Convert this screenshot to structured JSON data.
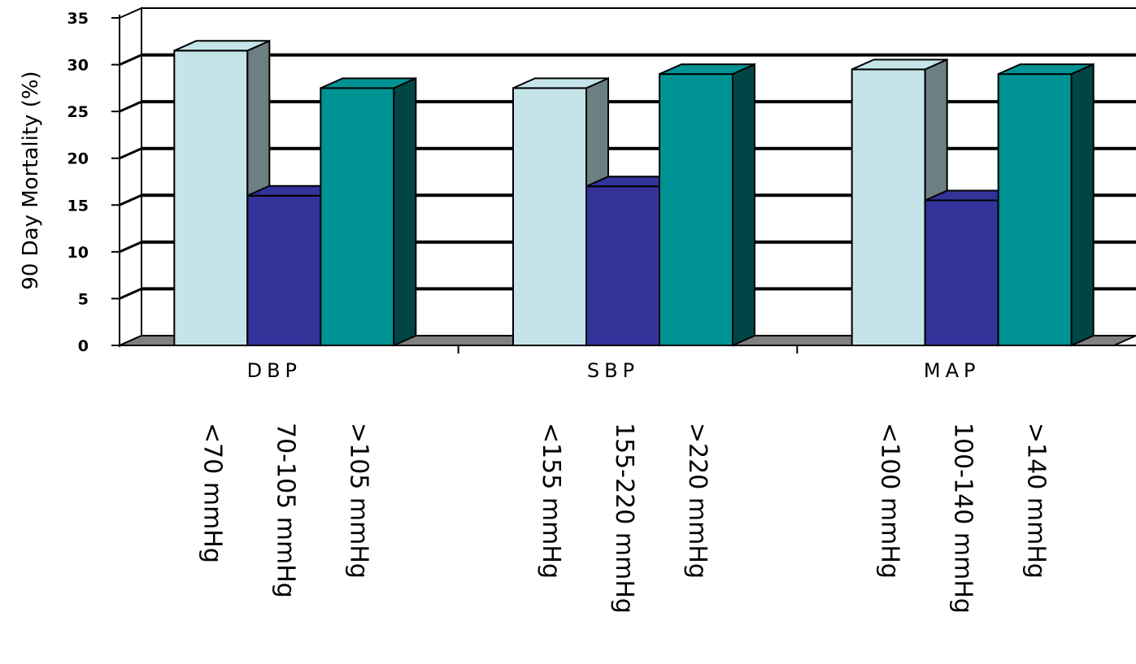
{
  "chart_data": {
    "type": "bar",
    "title": "",
    "xlabel": "",
    "ylabel": "90 Day Mortality (%)",
    "ylim": [
      0,
      35
    ],
    "ytick_labels": [
      "0",
      "5",
      "10",
      "15",
      "20",
      "25",
      "30",
      "35"
    ],
    "grid": true,
    "legend": "none",
    "categories": [
      "DBP",
      "SBP",
      "MAP"
    ],
    "series": [
      {
        "color": "#c4e4ea",
        "values": [
          31.5,
          27.5,
          29.5
        ],
        "range_labels": [
          "<70 mmHg",
          "<155 mmHg",
          "<100 mmHg"
        ]
      },
      {
        "color": "#33339a",
        "values": [
          16,
          17,
          15.5
        ],
        "range_labels": [
          "70-105 mmHg",
          "155-220 mmHg",
          "100-140 mmHg"
        ]
      },
      {
        "color": "#009394",
        "values": [
          27.5,
          29,
          29
        ],
        "range_labels": [
          ">105 mmHg",
          ">220 mmHg",
          ">140 mmHg"
        ]
      }
    ],
    "colors": {
      "grid": "#000000",
      "wall": "#ffffff",
      "floor": "#808080",
      "series1_side": "#6c7f82",
      "series2_side": "#151570",
      "series3_side": "#004646"
    }
  }
}
